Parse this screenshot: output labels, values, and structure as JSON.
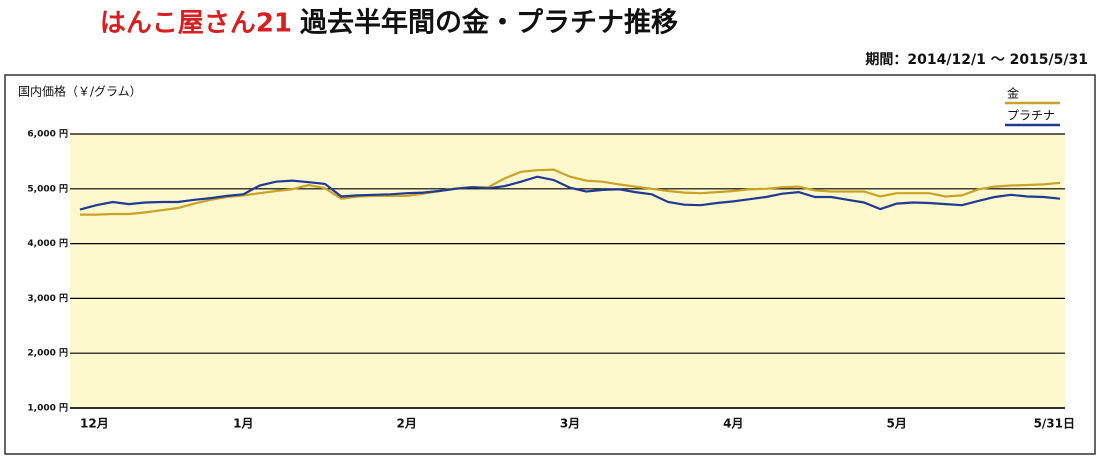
{
  "chart_data": {
    "type": "line",
    "logo": "はんこ屋さん21",
    "title": "過去半年間の金・プラチナ推移",
    "subtitle": "期間：2014/12/1 〜 2015/5/31",
    "y_label": "国内価格（￥/グラム）",
    "categories": [
      "12月",
      null,
      null,
      null,
      null,
      null,
      null,
      null,
      null,
      null,
      "1月",
      null,
      null,
      null,
      null,
      null,
      null,
      null,
      null,
      null,
      "2月",
      null,
      null,
      null,
      null,
      null,
      null,
      null,
      null,
      null,
      "3月",
      null,
      null,
      null,
      null,
      null,
      null,
      null,
      null,
      null,
      "4月",
      null,
      null,
      null,
      null,
      null,
      null,
      null,
      null,
      null,
      "5月",
      null,
      null,
      null,
      null,
      null,
      null,
      null,
      null,
      null,
      "5/31日"
    ],
    "series": [
      {
        "name": "金",
        "color": "#c9a227",
        "values": [
          4530,
          4530,
          4540,
          4540,
          4570,
          4610,
          4650,
          4730,
          4800,
          4850,
          4880,
          4920,
          4960,
          4990,
          5070,
          5010,
          4820,
          4860,
          4870,
          4870,
          4870,
          4910,
          4960,
          5010,
          5030,
          5030,
          5190,
          5310,
          5340,
          5350,
          5220,
          5150,
          5130,
          5080,
          5040,
          5000,
          4960,
          4930,
          4920,
          4940,
          4960,
          4990,
          5000,
          5030,
          5040,
          4970,
          4950,
          4950,
          4950,
          4860,
          4920,
          4920,
          4920,
          4860,
          4880,
          4990,
          5040,
          5060,
          5070,
          5080,
          5110
        ]
      },
      {
        "name": "プラチナ",
        "color": "#1f3a93",
        "values": [
          4620,
          4700,
          4760,
          4720,
          4750,
          4760,
          4760,
          4800,
          4830,
          4870,
          4900,
          5060,
          5130,
          5150,
          5120,
          5090,
          4860,
          4880,
          4890,
          4900,
          4920,
          4930,
          4960,
          5000,
          5030,
          5010,
          5050,
          5130,
          5220,
          5160,
          5020,
          4950,
          4980,
          4990,
          4940,
          4900,
          4760,
          4710,
          4700,
          4740,
          4770,
          4810,
          4850,
          4910,
          4940,
          4850,
          4850,
          4800,
          4750,
          4630,
          4730,
          4750,
          4740,
          4720,
          4700,
          4780,
          4850,
          4890,
          4860,
          4850,
          4820
        ]
      }
    ],
    "ylim": [
      1000,
      6000
    ],
    "yticks": [
      {
        "value": 1000,
        "label": "1,000 円"
      },
      {
        "value": 2000,
        "label": "2,000 円"
      },
      {
        "value": 3000,
        "label": "3,000 円"
      },
      {
        "value": 4000,
        "label": "4,000 円"
      },
      {
        "value": 5000,
        "label": "5,000 円"
      },
      {
        "value": 6000,
        "label": "6,000 円"
      }
    ],
    "grid": true,
    "legend": "upper right"
  }
}
